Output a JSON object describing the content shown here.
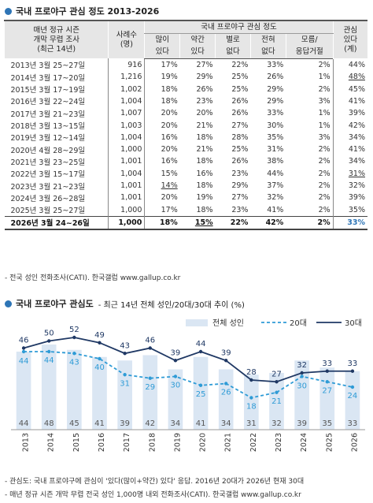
{
  "table_title": "국내 프로야구 관심 정도 2013-2026",
  "table": {
    "header_survey": [
      "매년 정규 시즌",
      "개막 무렵 조사",
      "(최근 14년)"
    ],
    "header_sample": [
      "사례수",
      "(명)"
    ],
    "header_group": "국내 프로야구 관심 정도",
    "header_cols": [
      [
        "많이",
        "있다"
      ],
      [
        "약간",
        "있다"
      ],
      [
        "별로",
        "없다"
      ],
      [
        "전혀",
        "없다"
      ],
      [
        "모름/",
        "응답거절"
      ]
    ],
    "header_interest": [
      "관심",
      "있다",
      "(계)"
    ],
    "rows": [
      {
        "date": "2013년 3월 25~27일",
        "n": "916",
        "v": [
          "17%",
          "27%",
          "22%",
          "33%",
          "2%"
        ],
        "total": "44%"
      },
      {
        "date": "2014년 3월 17~20일",
        "n": "1,216",
        "v": [
          "19%",
          "29%",
          "25%",
          "26%",
          "1%"
        ],
        "total": "48%"
      },
      {
        "date": "2015년 3월 17~19일",
        "n": "1,002",
        "v": [
          "18%",
          "26%",
          "25%",
          "29%",
          "2%"
        ],
        "total": "45%"
      },
      {
        "date": "2016년 3월 22~24일",
        "n": "1,004",
        "v": [
          "18%",
          "23%",
          "26%",
          "29%",
          "3%"
        ],
        "total": "41%"
      },
      {
        "date": "2017년 3월 21~23일",
        "n": "1,007",
        "v": [
          "20%",
          "20%",
          "26%",
          "33%",
          "1%"
        ],
        "total": "39%"
      },
      {
        "date": "2018년 3월 13~15일",
        "n": "1,003",
        "v": [
          "20%",
          "21%",
          "27%",
          "30%",
          "1%"
        ],
        "total": "42%"
      },
      {
        "date": "2019년 3월 12~14일",
        "n": "1,004",
        "v": [
          "16%",
          "18%",
          "28%",
          "35%",
          "3%"
        ],
        "total": "34%"
      },
      {
        "date": "2020년 4월 28~29일",
        "n": "1,000",
        "v": [
          "20%",
          "21%",
          "25%",
          "31%",
          "2%"
        ],
        "total": "41%"
      },
      {
        "date": "2021년 3월 23~25일",
        "n": "1,001",
        "v": [
          "16%",
          "18%",
          "26%",
          "38%",
          "2%"
        ],
        "total": "34%"
      },
      {
        "date": "2022년 3월 15~17일",
        "n": "1,004",
        "v": [
          "15%",
          "16%",
          "23%",
          "44%",
          "2%"
        ],
        "total": "31%"
      },
      {
        "date": "2023년 3월 21~23일",
        "n": "1,001",
        "v": [
          "14%",
          "18%",
          "29%",
          "37%",
          "2%"
        ],
        "total": "32%"
      },
      {
        "date": "2024년 3월 26~28일",
        "n": "1,001",
        "v": [
          "20%",
          "19%",
          "27%",
          "32%",
          "2%"
        ],
        "total": "39%"
      },
      {
        "date": "2025년 3월 25~27일",
        "n": "1,000",
        "v": [
          "17%",
          "18%",
          "23%",
          "41%",
          "2%"
        ],
        "total": "35%"
      },
      {
        "date": "2026년 3월 24~26일",
        "n": "1,000",
        "v": [
          "18%",
          "15%",
          "22%",
          "42%",
          "2%"
        ],
        "total": "33%"
      }
    ],
    "red_cells": [
      [
        1,
        1
      ],
      [
        1,
        5
      ],
      [
        4,
        0
      ],
      [
        5,
        0
      ],
      [
        7,
        0
      ],
      [
        11,
        0
      ]
    ],
    "underlined_cells": [
      [
        1,
        5
      ],
      [
        9,
        5
      ],
      [
        10,
        0
      ],
      [
        13,
        1
      ]
    ],
    "source": "- 전국 성인 전화조사(CATI). 한국갤럽 www.gallup.co.kr"
  },
  "chart_title": "국내 프로야구 관심도",
  "chart_subtitle": "- 최근 14년 전체 성인/20대/30대 추이 (%)",
  "chart_data": {
    "type": "bar",
    "categories": [
      "2013",
      "2014",
      "2015",
      "2016",
      "2017",
      "2018",
      "2019",
      "2020",
      "2021",
      "2022",
      "2023",
      "2024",
      "2025",
      "2026"
    ],
    "series": [
      {
        "name": "전체 성인",
        "kind": "bar",
        "color": "#dae6f3",
        "values": [
          44,
          48,
          45,
          41,
          39,
          42,
          34,
          41,
          34,
          31,
          32,
          39,
          35,
          33
        ]
      },
      {
        "name": "20대",
        "kind": "line-dashed",
        "color": "#2e9bd6",
        "values": [
          44,
          44,
          43,
          40,
          31,
          29,
          30,
          25,
          26,
          18,
          21,
          30,
          27,
          24
        ]
      },
      {
        "name": "30대",
        "kind": "line",
        "color": "#1f3864",
        "values": [
          46,
          50,
          52,
          49,
          43,
          46,
          39,
          44,
          39,
          28,
          27,
          32,
          33,
          33
        ]
      }
    ],
    "ylim": [
      0,
      60
    ],
    "legend_position": "top-right",
    "grid": false
  },
  "notes": [
    "- 관심도: 국내 프로야구에 관심이 '있다(많이+약간) 있다' 응답. 2016년 20대가 2026년 현재 30대",
    "- 매년 정규 시즌 개막 무렵 전국 성인 1,000명 내외 전화조사(CATI). 한국갤럽 www.gallup.co.kr"
  ]
}
